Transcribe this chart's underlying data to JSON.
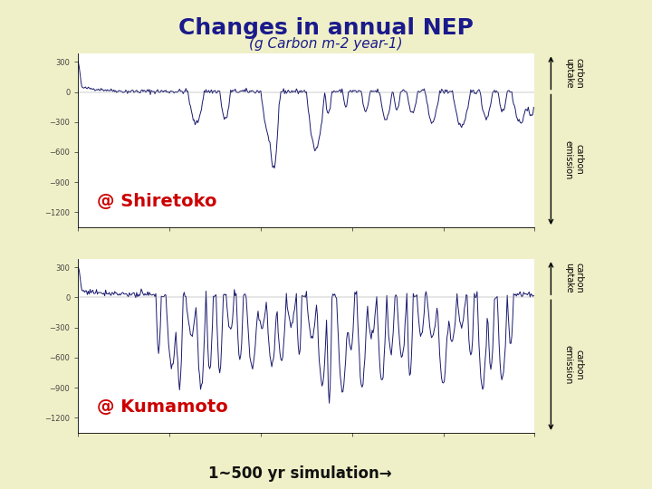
{
  "background_color": "#f0f0c8",
  "title": "Changes in annual NEP",
  "subtitle": "(g Carbon m-2 year-1)",
  "title_color": "#1a1a8c",
  "title_fontsize": 18,
  "subtitle_fontsize": 11,
  "label_shiretoko": "@ Shiretoko",
  "label_kumamoto": "@ Kumamoto",
  "label_color": "#cc0000",
  "label_fontsize": 14,
  "xlabel": "1~500 yr simulation→",
  "xlabel_fontsize": 12,
  "xlabel_color": "#111111",
  "plot_bg": "#ffffff",
  "line_color": "#1a1a6e",
  "line_width": 0.7,
  "yticks_shiretoko": [
    300,
    0,
    -300,
    -600,
    -900,
    -1200
  ],
  "yticks_kumamoto": [
    300,
    0,
    -300,
    -600,
    -900,
    -1200
  ],
  "ylim_shiretoko": [
    -1350,
    380
  ],
  "ylim_kumamoto": [
    -1350,
    380
  ],
  "xlim": [
    0,
    500
  ],
  "arrow_text_up": "carbon\nuptake",
  "arrow_text_down": "carbon\nemission",
  "n_points": 500
}
